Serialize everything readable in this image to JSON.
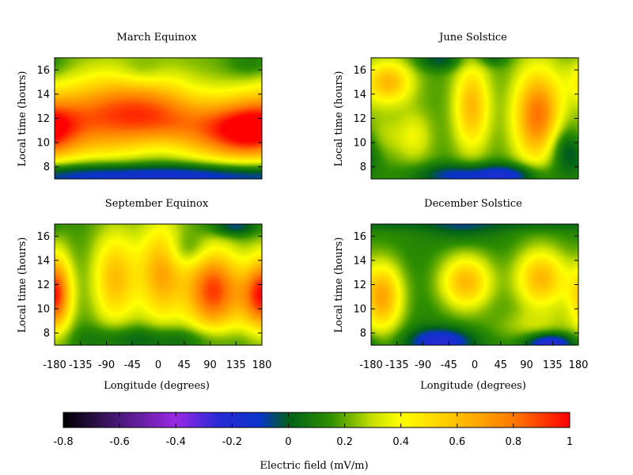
{
  "chart_data": {
    "type": "heatmap",
    "colorbar": {
      "label": "Electric field (mV/m)",
      "range": [
        -0.8,
        1
      ],
      "ticks": [
        "-0.8",
        "-0.6",
        "-0.4",
        "-0.2",
        "0",
        "0.2",
        "0.4",
        "0.6",
        "0.8",
        "1"
      ],
      "palette": [
        {
          "v": -0.8,
          "c": "#000000"
        },
        {
          "v": -0.6,
          "c": "#4a1a7a"
        },
        {
          "v": -0.4,
          "c": "#9a28e6"
        },
        {
          "v": -0.25,
          "c": "#2a2ad6"
        },
        {
          "v": -0.1,
          "c": "#0a34c8"
        },
        {
          "v": 0.0,
          "c": "#00601a"
        },
        {
          "v": 0.15,
          "c": "#2e8f00"
        },
        {
          "v": 0.3,
          "c": "#c8e000"
        },
        {
          "v": 0.4,
          "c": "#ffff00"
        },
        {
          "v": 0.6,
          "c": "#ffc000"
        },
        {
          "v": 0.8,
          "c": "#ff7a00"
        },
        {
          "v": 1.0,
          "c": "#ff0000"
        }
      ]
    },
    "x": {
      "label": "Longitude (degrees)",
      "range": [
        -180,
        180
      ],
      "ticks": [
        "-180",
        "-135",
        "-90",
        "-45",
        "0",
        "45",
        "90",
        "135",
        "180"
      ]
    },
    "y": {
      "label": "Local time (hours)",
      "range": [
        7,
        17
      ],
      "ticks": [
        "8",
        "10",
        "12",
        "14",
        "16"
      ]
    },
    "panels": [
      {
        "title": "March Equinox",
        "base": 0.2,
        "blobs": [
          {
            "lon": -120,
            "lt": 12.0,
            "slon": 70,
            "slt": 2.2,
            "a": 0.4
          },
          {
            "lon": -45,
            "lt": 12.6,
            "slon": 60,
            "slt": 2.4,
            "a": 0.38
          },
          {
            "lon": 20,
            "lt": 12.0,
            "slon": 50,
            "slt": 2.0,
            "a": 0.3
          },
          {
            "lon": 115,
            "lt": 11.0,
            "slon": 55,
            "slt": 1.8,
            "a": 0.55
          },
          {
            "lon": 170,
            "lt": 11.0,
            "slon": 40,
            "slt": 1.8,
            "a": 0.35
          },
          {
            "lon": 0,
            "lt": 9.5,
            "slon": 40,
            "slt": 1.0,
            "a": -0.1
          },
          {
            "lon": 0,
            "lt": 7.3,
            "slon": 400,
            "slt": 0.8,
            "a": -0.4
          },
          {
            "lon": -30,
            "lt": 15.8,
            "slon": 30,
            "slt": 0.9,
            "a": -0.12
          },
          {
            "lon": 160,
            "lt": 16.5,
            "slon": 30,
            "slt": 0.9,
            "a": -0.12
          }
        ]
      },
      {
        "title": "June Solstice",
        "base": 0.17,
        "blobs": [
          {
            "lon": -150,
            "lt": 15.0,
            "slon": 30,
            "slt": 1.3,
            "a": 0.45
          },
          {
            "lon": -165,
            "lt": 10.5,
            "slon": 25,
            "slt": 1.3,
            "a": 0.15
          },
          {
            "lon": -105,
            "lt": 10.5,
            "slon": 22,
            "slt": 1.5,
            "a": 0.2
          },
          {
            "lon": -5,
            "lt": 13.0,
            "slon": 22,
            "slt": 2.6,
            "a": 0.45
          },
          {
            "lon": 110,
            "lt": 12.2,
            "slon": 30,
            "slt": 2.8,
            "a": 0.65
          },
          {
            "lon": 160,
            "lt": 9.5,
            "slon": 25,
            "slt": 1.5,
            "a": -0.3
          },
          {
            "lon": -20,
            "lt": 7.3,
            "slon": 60,
            "slt": 0.7,
            "a": -0.3
          },
          {
            "lon": 70,
            "lt": 7.3,
            "slon": 40,
            "slt": 0.7,
            "a": -0.25
          },
          {
            "lon": -60,
            "lt": 16.8,
            "slon": 30,
            "slt": 0.6,
            "a": -0.2
          },
          {
            "lon": 30,
            "lt": 17.0,
            "slon": 20,
            "slt": 0.5,
            "a": -0.15
          }
        ]
      },
      {
        "title": "September Equinox",
        "base": 0.15,
        "blobs": [
          {
            "lon": -175,
            "lt": 11.5,
            "slon": 18,
            "slt": 2.4,
            "a": 0.4
          },
          {
            "lon": -75,
            "lt": 12.5,
            "slon": 28,
            "slt": 2.8,
            "a": 0.45
          },
          {
            "lon": 5,
            "lt": 13.0,
            "slon": 28,
            "slt": 3.0,
            "a": 0.5
          },
          {
            "lon": 95,
            "lt": 11.5,
            "slon": 35,
            "slt": 2.5,
            "a": 0.75
          },
          {
            "lon": 170,
            "lt": 11.0,
            "slon": 25,
            "slt": 2.0,
            "a": 0.45
          },
          {
            "lon": 50,
            "lt": 14.8,
            "slon": 25,
            "slt": 1.0,
            "a": -0.15
          },
          {
            "lon": 130,
            "lt": 16.8,
            "slon": 30,
            "slt": 0.6,
            "a": -0.25
          },
          {
            "lon": -60,
            "lt": 7.6,
            "slon": 60,
            "slt": 0.8,
            "a": -0.15
          },
          {
            "lon": 60,
            "lt": 7.5,
            "slon": 60,
            "slt": 0.8,
            "a": -0.15
          }
        ]
      },
      {
        "title": "December Solstice",
        "base": 0.12,
        "blobs": [
          {
            "lon": -160,
            "lt": 11.0,
            "slon": 25,
            "slt": 2.0,
            "a": 0.55
          },
          {
            "lon": -15,
            "lt": 12.2,
            "slon": 32,
            "slt": 1.6,
            "a": 0.5
          },
          {
            "lon": 115,
            "lt": 12.5,
            "slon": 32,
            "slt": 1.8,
            "a": 0.5
          },
          {
            "lon": 100,
            "lt": 8.5,
            "slon": 50,
            "slt": 1.0,
            "a": 0.15
          },
          {
            "lon": -60,
            "lt": 7.3,
            "slon": 40,
            "slt": 0.8,
            "a": -0.35
          },
          {
            "lon": 130,
            "lt": 7.2,
            "slon": 30,
            "slt": 0.6,
            "a": -0.4
          },
          {
            "lon": -20,
            "lt": 16.5,
            "slon": 40,
            "slt": 0.8,
            "a": -0.1
          },
          {
            "lon": 0,
            "lt": 17.0,
            "slon": 400,
            "slt": 0.4,
            "a": -0.1
          }
        ]
      }
    ]
  }
}
